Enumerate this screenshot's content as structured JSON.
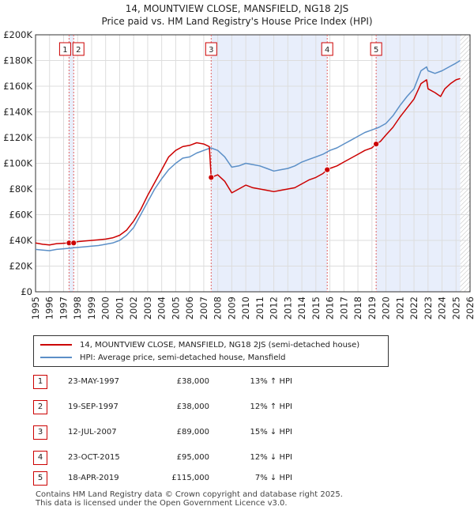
{
  "chart_data": {
    "type": "line",
    "title": "14, MOUNTVIEW CLOSE, MANSFIELD, NG18 2JS",
    "subtitle": "Price paid vs. HM Land Registry's House Price Index (HPI)",
    "xlim": [
      1995,
      2026
    ],
    "ylim": [
      0,
      200000
    ],
    "x_ticks": [
      "1995",
      "1996",
      "1997",
      "1998",
      "1999",
      "2000",
      "2001",
      "2002",
      "2003",
      "2004",
      "2005",
      "2006",
      "2007",
      "2008",
      "2009",
      "2010",
      "2011",
      "2012",
      "2013",
      "2014",
      "2015",
      "2016",
      "2017",
      "2018",
      "2019",
      "2020",
      "2021",
      "2022",
      "2023",
      "2024",
      "2025",
      "2026"
    ],
    "y_ticks": [
      {
        "value": 0,
        "label": "£0"
      },
      {
        "value": 20000,
        "label": "£20K"
      },
      {
        "value": 40000,
        "label": "£40K"
      },
      {
        "value": 60000,
        "label": "£60K"
      },
      {
        "value": 80000,
        "label": "£80K"
      },
      {
        "value": 100000,
        "label": "£100K"
      },
      {
        "value": 120000,
        "label": "£120K"
      },
      {
        "value": 140000,
        "label": "£140K"
      },
      {
        "value": 160000,
        "label": "£160K"
      },
      {
        "value": 180000,
        "label": "£180K"
      },
      {
        "value": 200000,
        "label": "£200K"
      }
    ],
    "shaded_ranges": [
      [
        1997.39,
        1997.72
      ],
      [
        2007.53,
        2015.81
      ],
      [
        2019.3,
        2025.3
      ]
    ],
    "future_hatch_from": 2025.3,
    "series": [
      {
        "name": "14, MOUNTVIEW CLOSE, MANSFIELD, NG18 2JS (semi-detached house)",
        "color": "#cc0000",
        "points": [
          [
            1995,
            38000
          ],
          [
            1995.5,
            37000
          ],
          [
            1996,
            36500
          ],
          [
            1996.5,
            37500
          ],
          [
            1997,
            37800
          ],
          [
            1997.39,
            38000
          ],
          [
            1997.72,
            38000
          ],
          [
            1998,
            39000
          ],
          [
            1998.5,
            39500
          ],
          [
            1999,
            40000
          ],
          [
            1999.5,
            40500
          ],
          [
            2000,
            41000
          ],
          [
            2000.5,
            42000
          ],
          [
            2001,
            44000
          ],
          [
            2001.5,
            48000
          ],
          [
            2002,
            55000
          ],
          [
            2002.5,
            64000
          ],
          [
            2003,
            75000
          ],
          [
            2003.5,
            85000
          ],
          [
            2004,
            95000
          ],
          [
            2004.5,
            105000
          ],
          [
            2005,
            110000
          ],
          [
            2005.5,
            113000
          ],
          [
            2006,
            114000
          ],
          [
            2006.5,
            116000
          ],
          [
            2007,
            115000
          ],
          [
            2007.4,
            113000
          ],
          [
            2007.53,
            89000
          ],
          [
            2008,
            91000
          ],
          [
            2008.5,
            86000
          ],
          [
            2009,
            77000
          ],
          [
            2009.5,
            80000
          ],
          [
            2010,
            83000
          ],
          [
            2010.5,
            81000
          ],
          [
            2011,
            80000
          ],
          [
            2011.5,
            79000
          ],
          [
            2012,
            78000
          ],
          [
            2012.5,
            79000
          ],
          [
            2013,
            80000
          ],
          [
            2013.5,
            81000
          ],
          [
            2014,
            84000
          ],
          [
            2014.5,
            87000
          ],
          [
            2015,
            89000
          ],
          [
            2015.5,
            92000
          ],
          [
            2015.81,
            95000
          ],
          [
            2016,
            96000
          ],
          [
            2016.5,
            98000
          ],
          [
            2017,
            101000
          ],
          [
            2017.5,
            104000
          ],
          [
            2018,
            107000
          ],
          [
            2018.5,
            110000
          ],
          [
            2019,
            112000
          ],
          [
            2019.3,
            115000
          ],
          [
            2019.6,
            117000
          ],
          [
            2020,
            122000
          ],
          [
            2020.5,
            128000
          ],
          [
            2021,
            136000
          ],
          [
            2021.5,
            143000
          ],
          [
            2022,
            150000
          ],
          [
            2022.5,
            162000
          ],
          [
            2022.9,
            165000
          ],
          [
            2023,
            158000
          ],
          [
            2023.5,
            155000
          ],
          [
            2023.9,
            152000
          ],
          [
            2024.2,
            158000
          ],
          [
            2024.6,
            162000
          ],
          [
            2025,
            165000
          ],
          [
            2025.3,
            166000
          ]
        ]
      },
      {
        "name": "HPI: Average price, semi-detached house, Mansfield",
        "color": "#5b8fc7",
        "points": [
          [
            1995,
            33000
          ],
          [
            1995.5,
            32500
          ],
          [
            1996,
            32000
          ],
          [
            1996.5,
            33000
          ],
          [
            1997,
            33500
          ],
          [
            1997.5,
            34000
          ],
          [
            1998,
            34500
          ],
          [
            1998.5,
            35000
          ],
          [
            1999,
            35500
          ],
          [
            1999.5,
            36000
          ],
          [
            2000,
            37000
          ],
          [
            2000.5,
            38000
          ],
          [
            2001,
            40000
          ],
          [
            2001.5,
            44000
          ],
          [
            2002,
            50000
          ],
          [
            2002.5,
            60000
          ],
          [
            2003,
            70000
          ],
          [
            2003.5,
            80000
          ],
          [
            2004,
            88000
          ],
          [
            2004.5,
            95000
          ],
          [
            2005,
            100000
          ],
          [
            2005.5,
            104000
          ],
          [
            2006,
            105000
          ],
          [
            2006.5,
            108000
          ],
          [
            2007,
            110000
          ],
          [
            2007.5,
            112000
          ],
          [
            2008,
            110000
          ],
          [
            2008.5,
            105000
          ],
          [
            2009,
            97000
          ],
          [
            2009.5,
            98000
          ],
          [
            2010,
            100000
          ],
          [
            2010.5,
            99000
          ],
          [
            2011,
            98000
          ],
          [
            2011.5,
            96000
          ],
          [
            2012,
            94000
          ],
          [
            2012.5,
            95000
          ],
          [
            2013,
            96000
          ],
          [
            2013.5,
            98000
          ],
          [
            2014,
            101000
          ],
          [
            2014.5,
            103000
          ],
          [
            2015,
            105000
          ],
          [
            2015.5,
            107000
          ],
          [
            2016,
            110000
          ],
          [
            2016.5,
            112000
          ],
          [
            2017,
            115000
          ],
          [
            2017.5,
            118000
          ],
          [
            2018,
            121000
          ],
          [
            2018.5,
            124000
          ],
          [
            2019,
            126000
          ],
          [
            2019.5,
            128000
          ],
          [
            2020,
            131000
          ],
          [
            2020.5,
            137000
          ],
          [
            2021,
            145000
          ],
          [
            2021.5,
            152000
          ],
          [
            2022,
            158000
          ],
          [
            2022.5,
            172000
          ],
          [
            2022.9,
            175000
          ],
          [
            2023,
            172000
          ],
          [
            2023.5,
            170000
          ],
          [
            2024,
            172000
          ],
          [
            2024.5,
            175000
          ],
          [
            2025,
            178000
          ],
          [
            2025.3,
            180000
          ]
        ]
      }
    ],
    "markers": [
      {
        "label": "1",
        "x": 1997.39,
        "y": 38000
      },
      {
        "label": "2",
        "x": 1997.72,
        "y": 38000
      },
      {
        "label": "3",
        "x": 2007.53,
        "y": 89000
      },
      {
        "label": "4",
        "x": 2015.81,
        "y": 95000
      },
      {
        "label": "5",
        "x": 2019.3,
        "y": 115000
      }
    ]
  },
  "legend": {
    "property_label": "14, MOUNTVIEW CLOSE, MANSFIELD, NG18 2JS (semi-detached house)",
    "hpi_label": "HPI: Average price, semi-detached house, Mansfield",
    "property_color": "#cc0000",
    "hpi_color": "#5b8fc7"
  },
  "sales": [
    {
      "num": "1",
      "date": "23-MAY-1997",
      "price": "£38,000",
      "hpi": "13% ↑ HPI"
    },
    {
      "num": "2",
      "date": "19-SEP-1997",
      "price": "£38,000",
      "hpi": "12% ↑ HPI"
    },
    {
      "num": "3",
      "date": "12-JUL-2007",
      "price": "£89,000",
      "hpi": "15% ↓ HPI"
    },
    {
      "num": "4",
      "date": "23-OCT-2015",
      "price": "£95,000",
      "hpi": "12% ↓ HPI"
    },
    {
      "num": "5",
      "date": "18-APR-2019",
      "price": "£115,000",
      "hpi": "7% ↓ HPI"
    }
  ],
  "footer": {
    "line1": "Contains HM Land Registry data © Crown copyright and database right 2025.",
    "line2": "This data is licensed under the Open Government Licence v3.0."
  }
}
